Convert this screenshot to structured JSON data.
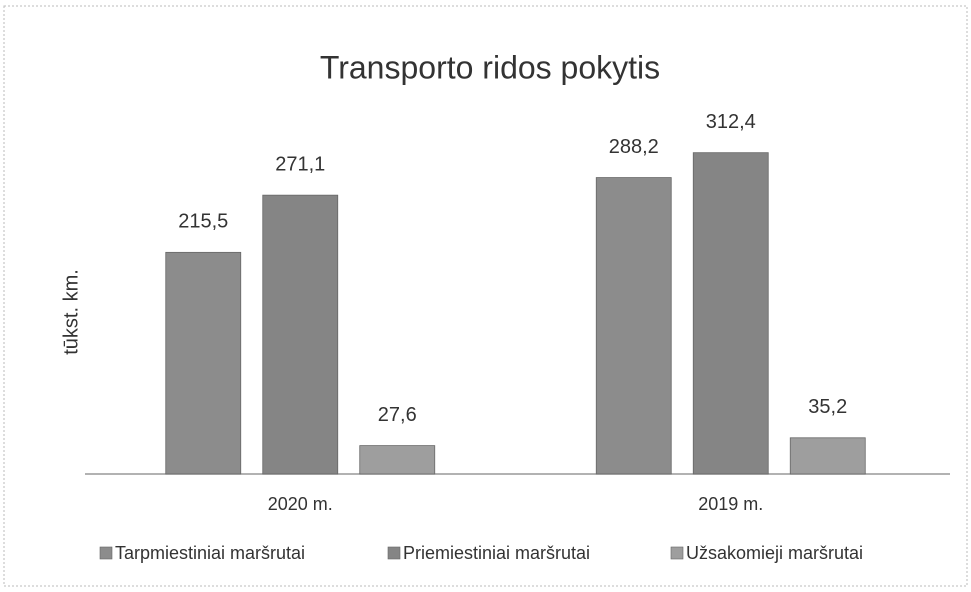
{
  "chart_data": {
    "type": "bar",
    "title": "Transporto ridos pokytis",
    "y_label": "tūkst. km.",
    "categories": [
      "2020 m.",
      "2019 m."
    ],
    "series": [
      {
        "name": "Tarpmiestiniai maršrutai",
        "color": "#8c8c8c",
        "values": [
          215.5,
          288.2
        ],
        "value_labels": [
          "215,5",
          "288,2"
        ]
      },
      {
        "name": "Priemiestiniai maršrutai",
        "color": "#858585",
        "values": [
          271.1,
          312.4
        ],
        "value_labels": [
          "271,1",
          "312,4"
        ]
      },
      {
        "name": "Užsakomieji maršrutai",
        "color": "#9e9e9e",
        "values": [
          27.6,
          35.2
        ],
        "value_labels": [
          "27,6",
          "35,2"
        ]
      }
    ],
    "ylim": [
      0,
      350
    ],
    "legend": "bottom"
  }
}
